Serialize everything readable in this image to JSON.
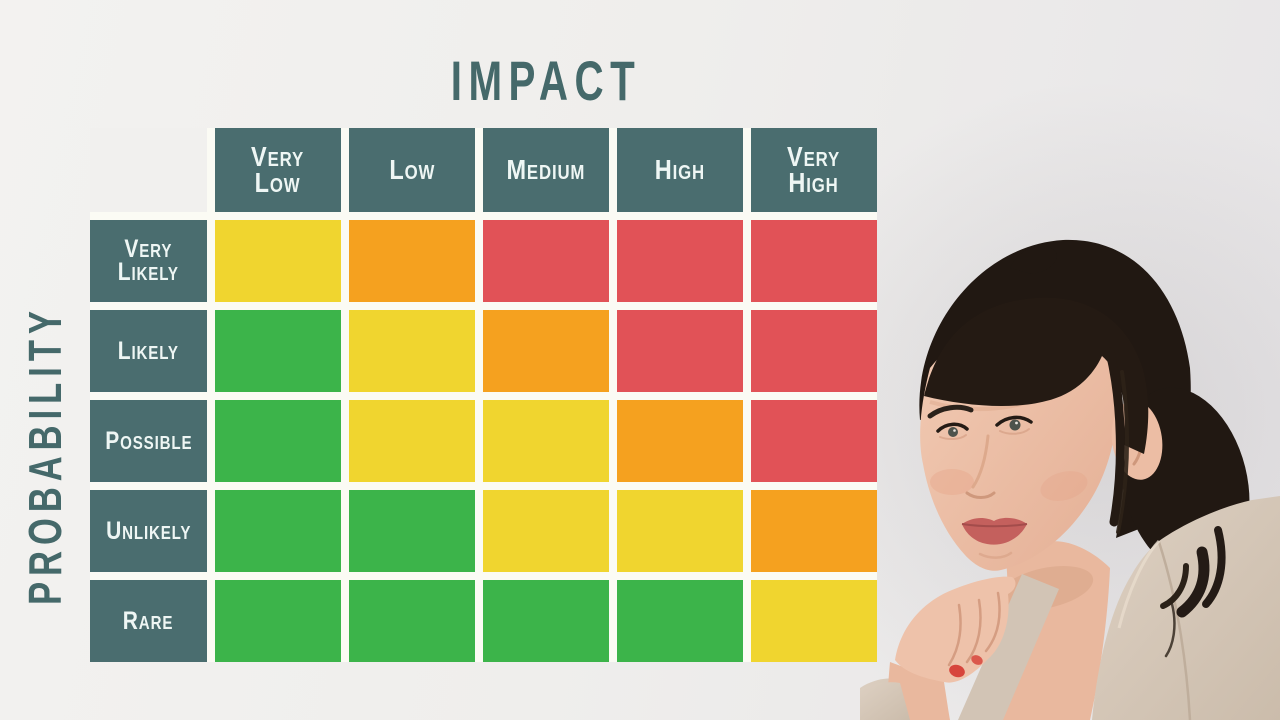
{
  "chart_data": {
    "type": "heatmap",
    "x_axis_title": "IMPACT",
    "y_axis_title": "PROBABILITY",
    "columns": [
      "Very\nLow",
      "Low",
      "Medium",
      "High",
      "Very\nHigh"
    ],
    "rows": [
      "Very\nLikely",
      "Likely",
      "Possible",
      "Unlikely",
      "Rare"
    ],
    "cells": [
      [
        "yellow",
        "orange",
        "red",
        "red",
        "red"
      ],
      [
        "green",
        "yellow",
        "orange",
        "red",
        "red"
      ],
      [
        "green",
        "yellow",
        "yellow",
        "orange",
        "red"
      ],
      [
        "green",
        "green",
        "yellow",
        "yellow",
        "orange"
      ],
      [
        "green",
        "green",
        "green",
        "green",
        "yellow"
      ]
    ],
    "severity_scale": {
      "green": 1,
      "yellow": 2,
      "orange": 3,
      "red": 4
    },
    "legend_position": "none",
    "grid": "white-gaps"
  },
  "colors": {
    "green": "#3cb44a",
    "yellow": "#f0d52f",
    "orange": "#f5a11f",
    "red": "#e15257",
    "header_bg": "#4a6d6f",
    "header_text": "#eef6f4",
    "axis_text": "#45696a",
    "page_bg": "#f1f0ee",
    "cell_gap": "#fbfbf4"
  },
  "portrait": {
    "alt": "Businesswoman with short dark hair and bangs resting her chin on her hand, wearing a beige blazer"
  }
}
